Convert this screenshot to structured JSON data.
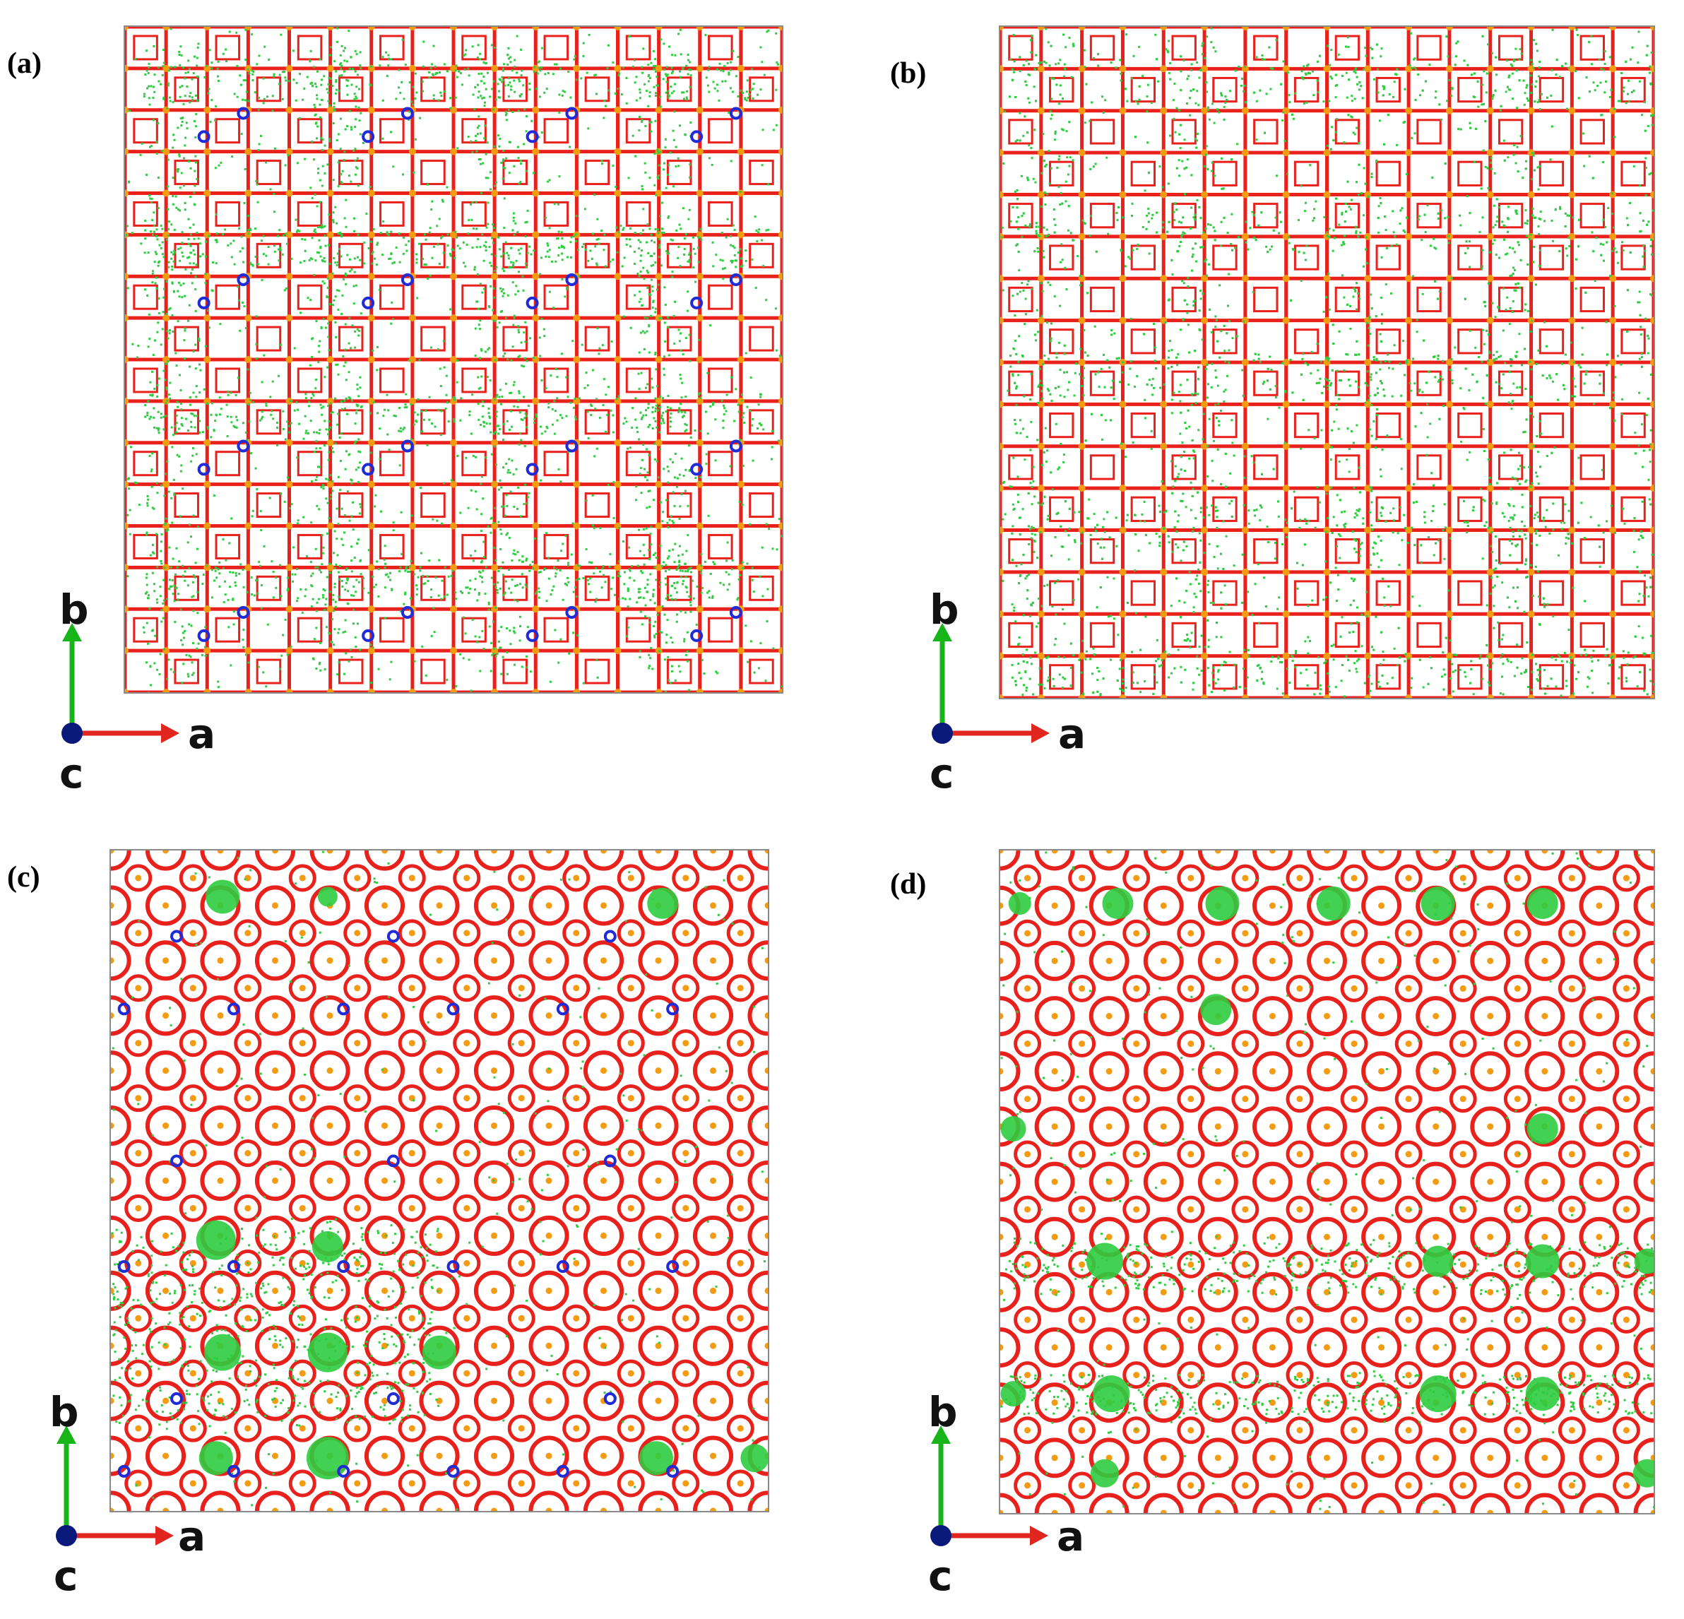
{
  "colors": {
    "framework_bond": "#e8211c",
    "framework_atom": "#f39c12",
    "guest_cloud": "#2ecc40",
    "cation": "#1f2bd6",
    "cell_border": "#8a8a8a",
    "axis_a": "#e0261f",
    "axis_b": "#17b51a",
    "axis_c": "#0a1a7a"
  },
  "panels": [
    {
      "id": "a",
      "label": "(a)",
      "axes": {
        "b": "b",
        "a": "a",
        "c": "c"
      }
    },
    {
      "id": "b",
      "label": "(b)",
      "axes": {
        "b": "b",
        "a": "a",
        "c": "c"
      }
    },
    {
      "id": "c",
      "label": "(c)",
      "axes": {
        "b": "b",
        "a": "a",
        "c": "c"
      }
    },
    {
      "id": "d",
      "label": "(d)",
      "axes": {
        "b": "b",
        "a": "a",
        "c": "c"
      }
    }
  ]
}
